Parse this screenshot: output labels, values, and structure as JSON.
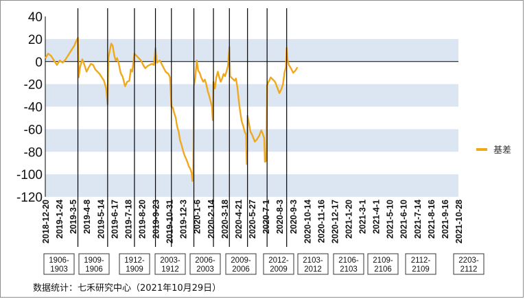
{
  "chart_data": {
    "type": "line",
    "ylim": [
      -120,
      40
    ],
    "yticks": [
      40,
      20,
      0,
      -20,
      -40,
      -60,
      -80,
      -100,
      -120
    ],
    "grid": "horizontal shaded bands",
    "legend_position": "right",
    "series": [
      {
        "name": "基差",
        "color": "#f0a81c",
        "points": [
          [
            0,
            3
          ],
          [
            4,
            7
          ],
          [
            8,
            5
          ],
          [
            12,
            1
          ],
          [
            16,
            -3
          ],
          [
            20,
            1
          ],
          [
            24,
            -1
          ],
          [
            28,
            2
          ],
          [
            32,
            6
          ],
          [
            36,
            10
          ],
          [
            40,
            14
          ],
          [
            44,
            20
          ],
          [
            45,
            21
          ],
          [
            46,
            -14
          ],
          [
            48,
            -5
          ],
          [
            51,
            2
          ],
          [
            54,
            -3
          ],
          [
            57,
            -9
          ],
          [
            60,
            -5
          ],
          [
            63,
            -2
          ],
          [
            66,
            -3
          ],
          [
            69,
            -7
          ],
          [
            72,
            -9
          ],
          [
            75,
            -11
          ],
          [
            78,
            -14
          ],
          [
            81,
            -17
          ],
          [
            84,
            -24
          ],
          [
            86,
            -38
          ],
          [
            87,
            3
          ],
          [
            89,
            10
          ],
          [
            91,
            16
          ],
          [
            93,
            14
          ],
          [
            95,
            6
          ],
          [
            97,
            1
          ],
          [
            99,
            3
          ],
          [
            101,
            -1
          ],
          [
            104,
            -10
          ],
          [
            107,
            -14
          ],
          [
            110,
            -22
          ],
          [
            113,
            -18
          ],
          [
            116,
            -17
          ],
          [
            118,
            -7
          ],
          [
            120,
            -9
          ],
          [
            123,
            7
          ],
          [
            126,
            5
          ],
          [
            129,
            3
          ],
          [
            132,
            1
          ],
          [
            135,
            -3
          ],
          [
            138,
            -6
          ],
          [
            141,
            -4
          ],
          [
            144,
            -3
          ],
          [
            147,
            -2
          ],
          [
            150,
            -3
          ],
          [
            152,
            12
          ],
          [
            154,
            -1
          ],
          [
            158,
            1
          ],
          [
            162,
            -4
          ],
          [
            166,
            -9
          ],
          [
            170,
            -11
          ],
          [
            172,
            -14
          ],
          [
            174,
            -40
          ],
          [
            176,
            -41
          ],
          [
            178,
            -46
          ],
          [
            180,
            -50
          ],
          [
            182,
            -58
          ],
          [
            184,
            -62
          ],
          [
            186,
            -70
          ],
          [
            188,
            -74
          ],
          [
            190,
            -79
          ],
          [
            192,
            -83
          ],
          [
            194,
            -86
          ],
          [
            196,
            -89
          ],
          [
            198,
            -93
          ],
          [
            200,
            -95
          ],
          [
            202,
            -99
          ],
          [
            203,
            -106
          ],
          [
            204,
            -105
          ],
          [
            205,
            -22
          ],
          [
            207,
            -14
          ],
          [
            209,
            1
          ],
          [
            211,
            -8
          ],
          [
            213,
            -10
          ],
          [
            215,
            -14
          ],
          [
            218,
            -18
          ],
          [
            220,
            -16
          ],
          [
            222,
            -20
          ],
          [
            224,
            -26
          ],
          [
            226,
            -30
          ],
          [
            228,
            -35
          ],
          [
            230,
            -40
          ],
          [
            231,
            -52
          ],
          [
            232,
            -18
          ],
          [
            234,
            -24
          ],
          [
            236,
            -14
          ],
          [
            238,
            -9
          ],
          [
            240,
            -14
          ],
          [
            242,
            -18
          ],
          [
            244,
            -15
          ],
          [
            246,
            -11
          ],
          [
            248,
            -13
          ],
          [
            250,
            -9
          ],
          [
            252,
            -4
          ],
          [
            254,
            13
          ],
          [
            255,
            -13
          ],
          [
            258,
            -15
          ],
          [
            261,
            -17
          ],
          [
            263,
            -15
          ],
          [
            265,
            -23
          ],
          [
            267,
            -35
          ],
          [
            269,
            -45
          ],
          [
            271,
            -53
          ],
          [
            273,
            -57
          ],
          [
            275,
            -62
          ],
          [
            277,
            -65
          ],
          [
            278,
            -91
          ],
          [
            279,
            -48
          ],
          [
            281,
            -55
          ],
          [
            283,
            -62
          ],
          [
            286,
            -66
          ],
          [
            289,
            -71
          ],
          [
            292,
            -69
          ],
          [
            295,
            -66
          ],
          [
            298,
            -61
          ],
          [
            300,
            -64
          ],
          [
            302,
            -68
          ],
          [
            303,
            -89
          ],
          [
            305,
            -88
          ],
          [
            306,
            -21
          ],
          [
            308,
            -18
          ],
          [
            311,
            -14
          ],
          [
            314,
            -16
          ],
          [
            317,
            -18
          ],
          [
            320,
            -23
          ],
          [
            323,
            -28
          ],
          [
            326,
            -24
          ],
          [
            328,
            -20
          ],
          [
            330,
            -10
          ],
          [
            332,
            -5
          ],
          [
            333,
            12
          ],
          [
            334,
            2
          ],
          [
            336,
            -3
          ],
          [
            339,
            -6
          ],
          [
            342,
            -10
          ],
          [
            345,
            -8
          ],
          [
            348,
            -5
          ]
        ]
      }
    ],
    "x_ticks": [
      {
        "label": "2018-12-20",
        "x": 0
      },
      {
        "label": "2019-1-24",
        "x": 19
      },
      {
        "label": "2019-3-5",
        "x": 38
      },
      {
        "label": "2019-4-8",
        "x": 57
      },
      {
        "label": "2019-5-14",
        "x": 76
      },
      {
        "label": "2019-6-17",
        "x": 95
      },
      {
        "label": "2019-7-18",
        "x": 114
      },
      {
        "label": "2019-8-20",
        "x": 133
      },
      {
        "label": "2019-9-23",
        "x": 152
      },
      {
        "label": "2019-10-31",
        "x": 171
      },
      {
        "label": "2019-12-3",
        "x": 190
      },
      {
        "label": "2020-1-6",
        "x": 209
      },
      {
        "label": "2020-2-14",
        "x": 228
      },
      {
        "label": "2020-3-18",
        "x": 247
      },
      {
        "label": "2020-4-21",
        "x": 266
      },
      {
        "label": "2020-5-27",
        "x": 285
      },
      {
        "label": "2020-7-1",
        "x": 304
      },
      {
        "label": "2020-8-3",
        "x": 323
      },
      {
        "label": "2020-9-3",
        "x": 342
      },
      {
        "label": "2020-10-14",
        "x": 361
      },
      {
        "label": "2020-11-16",
        "x": 380
      },
      {
        "label": "2020-12-17",
        "x": 399
      },
      {
        "label": "2021-1-20",
        "x": 418
      },
      {
        "label": "2021-3-1",
        "x": 437
      },
      {
        "label": "2021-4-1",
        "x": 456
      },
      {
        "label": "2021-5-10",
        "x": 475
      },
      {
        "label": "2021-6-10",
        "x": 494
      },
      {
        "label": "2021-7-14",
        "x": 513
      },
      {
        "label": "2021-8-16",
        "x": 532
      },
      {
        "label": "2021-9-16",
        "x": 551
      },
      {
        "label": "2021-10-28",
        "x": 570
      }
    ],
    "contract_rolls": [
      45,
      86,
      123,
      152,
      174,
      205,
      232,
      254,
      279,
      306,
      333
    ],
    "contract_labels": [
      "1906-\n1903",
      "1909-\n1906",
      "1912-\n1909",
      "2003-\n1912",
      "2006-\n2003",
      "2009-\n2006",
      "2012-\n2009",
      "2103-\n2012",
      "2106-\n2103",
      "2109-\n2106",
      "2112-\n2109",
      "2203-\n2112"
    ]
  },
  "source_note": "数据统计：七禾研究中心（2021年10月29日）"
}
